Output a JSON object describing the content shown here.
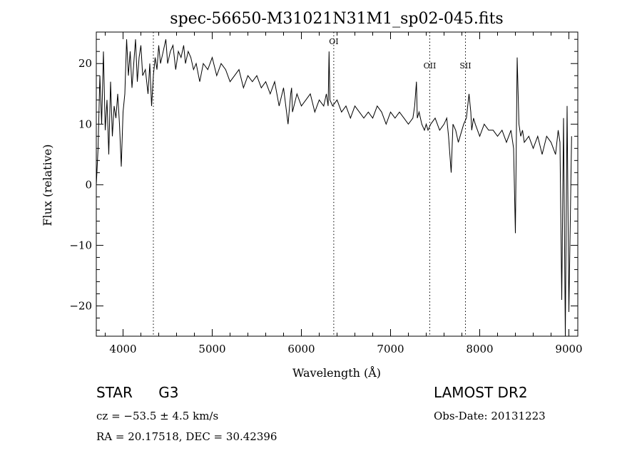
{
  "chart_data": {
    "type": "line",
    "title": "spec-56650-M31021N31M1_sp02-045.fits",
    "xlabel": "Wavelength (Å)",
    "ylabel": "Flux (relative)",
    "xlim": [
      3700,
      9100
    ],
    "ylim": [
      -25,
      25.2
    ],
    "xticks": [
      4000,
      5000,
      6000,
      7000,
      8000,
      9000
    ],
    "yticks": [
      -20,
      -10,
      0,
      10,
      20
    ],
    "grid": false,
    "lines": [
      {
        "label": "",
        "x": 4340
      },
      {
        "label": "OI",
        "x": 6363
      },
      {
        "label": "OII",
        "x": 7440
      },
      {
        "label": "SII",
        "x": 7840
      }
    ],
    "x": [
      3700,
      3720,
      3740,
      3760,
      3780,
      3800,
      3820,
      3840,
      3860,
      3880,
      3900,
      3920,
      3940,
      3960,
      3980,
      4000,
      4020,
      4040,
      4060,
      4080,
      4100,
      4120,
      4140,
      4160,
      4180,
      4200,
      4220,
      4250,
      4280,
      4300,
      4320,
      4340,
      4360,
      4380,
      4400,
      4420,
      4450,
      4480,
      4500,
      4530,
      4560,
      4590,
      4620,
      4650,
      4680,
      4700,
      4730,
      4760,
      4790,
      4820,
      4860,
      4900,
      4950,
      5000,
      5050,
      5100,
      5150,
      5200,
      5250,
      5300,
      5350,
      5400,
      5450,
      5500,
      5550,
      5600,
      5650,
      5700,
      5750,
      5800,
      5850,
      5880,
      5890,
      5900,
      5950,
      6000,
      6050,
      6100,
      6150,
      6200,
      6250,
      6280,
      6300,
      6310,
      6320,
      6350,
      6400,
      6450,
      6500,
      6550,
      6600,
      6650,
      6700,
      6750,
      6800,
      6850,
      6900,
      6950,
      7000,
      7050,
      7100,
      7150,
      7200,
      7250,
      7270,
      7290,
      7300,
      7320,
      7350,
      7380,
      7400,
      7420,
      7450,
      7500,
      7550,
      7600,
      7630,
      7650,
      7680,
      7700,
      7730,
      7760,
      7800,
      7820,
      7850,
      7880,
      7900,
      7910,
      7930,
      7950,
      8000,
      8050,
      8100,
      8150,
      8200,
      8250,
      8300,
      8350,
      8380,
      8400,
      8420,
      8440,
      8460,
      8480,
      8500,
      8550,
      8600,
      8650,
      8700,
      8750,
      8800,
      8850,
      8880,
      8900,
      8920,
      8940,
      8960,
      8980,
      9000,
      9030
    ],
    "y": [
      0,
      6,
      18,
      10,
      22,
      9,
      14,
      5,
      17,
      8,
      13,
      11,
      15,
      10,
      3,
      12,
      15,
      24,
      18,
      22,
      16,
      20,
      24,
      17,
      21,
      23,
      18,
      19,
      15,
      20,
      13,
      18,
      21,
      19,
      23,
      20,
      22,
      24,
      20,
      22,
      23,
      19,
      22,
      21,
      23,
      20,
      22,
      21,
      19,
      20,
      17,
      20,
      19,
      21,
      18,
      20,
      19,
      17,
      18,
      19,
      16,
      18,
      17,
      18,
      16,
      17,
      15,
      17,
      13,
      16,
      10,
      15,
      16,
      12,
      15,
      13,
      14,
      15,
      12,
      14,
      13,
      15,
      13,
      22,
      14,
      13,
      14,
      12,
      13,
      11,
      13,
      12,
      11,
      12,
      11,
      13,
      12,
      10,
      12,
      11,
      12,
      11,
      10,
      11,
      13,
      17,
      11,
      12,
      10,
      9,
      10,
      9,
      10,
      11,
      9,
      10,
      11,
      8,
      2,
      10,
      9,
      7,
      9,
      10,
      11,
      15,
      12,
      9,
      11,
      10,
      8,
      10,
      9,
      9,
      8,
      9,
      7,
      9,
      6,
      -8,
      21,
      10,
      8,
      9,
      7,
      8,
      6,
      8,
      5,
      8,
      7,
      5,
      9,
      7,
      -19,
      11,
      -25,
      13,
      -21,
      8
    ]
  },
  "footer": {
    "left": {
      "line1_class": "STAR",
      "line1_type": "G3",
      "cz": "cz = −53.5 ± 4.5 km/s",
      "coords": "RA =  20.17518, DEC =  30.42396"
    },
    "right": {
      "survey": "LAMOST DR2",
      "obs_date": "Obs-Date: 20131223"
    }
  }
}
